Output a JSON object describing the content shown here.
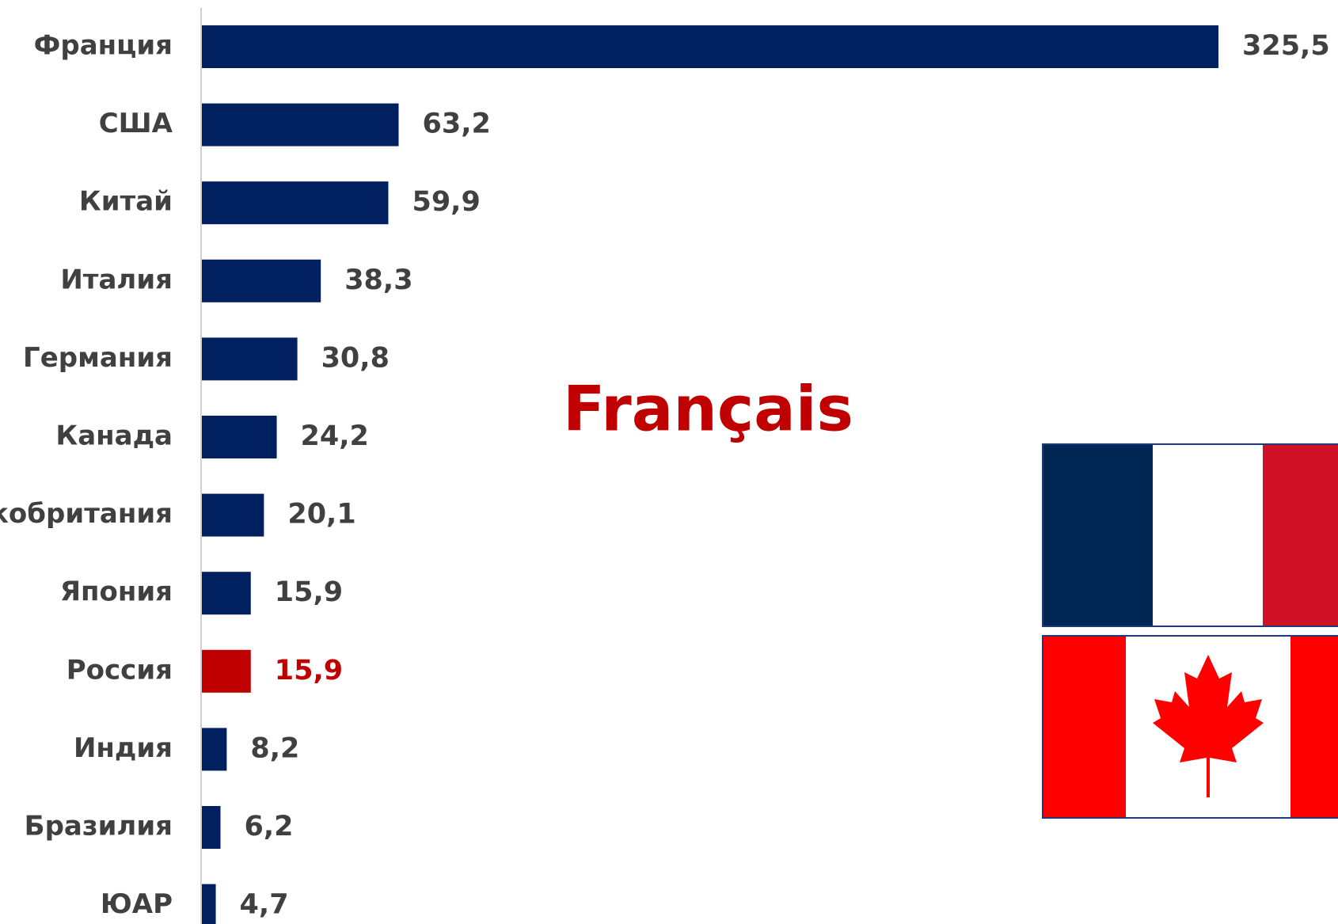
{
  "chart_data": {
    "type": "bar",
    "orientation": "horizontal",
    "annotation": "Français",
    "categories": [
      "Франция",
      "США",
      "Китай",
      "Италия",
      "Германия",
      "Канада",
      "Великобритания",
      "Япония",
      "Россия",
      "Индия",
      "Бразилия",
      "ЮАР"
    ],
    "values": [
      325.5,
      63.2,
      59.9,
      38.3,
      30.8,
      24.2,
      20.1,
      15.9,
      15.9,
      8.2,
      6.2,
      4.7
    ],
    "value_labels": [
      "325,5",
      "63,2",
      "59,9",
      "38,3",
      "30,8",
      "24,2",
      "20,1",
      "15,9",
      "15,9",
      "8,2",
      "6,2",
      "4,7"
    ],
    "colors": [
      "#002060",
      "#002060",
      "#002060",
      "#002060",
      "#002060",
      "#002060",
      "#002060",
      "#002060",
      "#c00000",
      "#002060",
      "#002060",
      "#002060"
    ],
    "label_colors": [
      "#404040",
      "#404040",
      "#404040",
      "#404040",
      "#404040",
      "#404040",
      "#404040",
      "#404040",
      "#c00000",
      "#404040",
      "#404040",
      "#404040"
    ]
  }
}
